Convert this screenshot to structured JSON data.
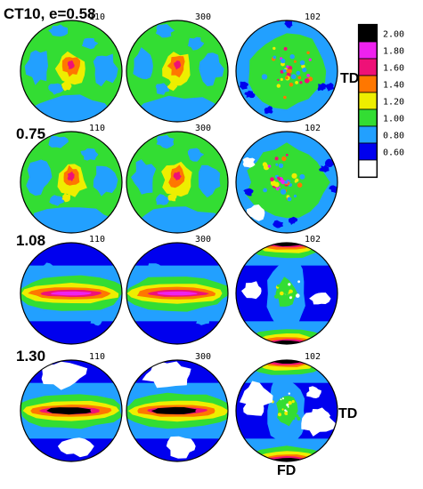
{
  "figure": {
    "rows": [
      {
        "label": "CT10, e=0.58",
        "poles": [
          {
            "hkl": "110",
            "pattern": "central-cluster"
          },
          {
            "hkl": "300",
            "pattern": "central-cluster"
          },
          {
            "hkl": "102",
            "pattern": "central-speckle"
          }
        ]
      },
      {
        "label": "0.75",
        "poles": [
          {
            "hkl": "110",
            "pattern": "central-cluster"
          },
          {
            "hkl": "300",
            "pattern": "central-cluster"
          },
          {
            "hkl": "102",
            "pattern": "central-speckle"
          }
        ]
      },
      {
        "label": "1.08",
        "poles": [
          {
            "hkl": "110",
            "pattern": "equatorial-band"
          },
          {
            "hkl": "300",
            "pattern": "equatorial-band"
          },
          {
            "hkl": "102",
            "pattern": "polar-caps"
          }
        ]
      },
      {
        "label": "1.30",
        "poles": [
          {
            "hkl": "110",
            "pattern": "equatorial-band-strong"
          },
          {
            "hkl": "300",
            "pattern": "equatorial-band-strong"
          },
          {
            "hkl": "102",
            "pattern": "polar-caps-strong"
          }
        ]
      }
    ],
    "axis_labels": {
      "td_top": "TD",
      "td_bottom": "TD",
      "fd": "FD"
    },
    "colorbar": [
      {
        "label": "2.00",
        "color": "#000000"
      },
      {
        "label": "1.80",
        "color": "#ee22ee"
      },
      {
        "label": "1.60",
        "color": "#ee1177"
      },
      {
        "label": "1.40",
        "color": "#ff7700"
      },
      {
        "label": "1.20",
        "color": "#eeee00"
      },
      {
        "label": "1.00",
        "color": "#33dd33"
      },
      {
        "label": "0.80",
        "color": "#22a0ff"
      },
      {
        "label": "0.60",
        "color": "#0000ee"
      },
      {
        "label": "",
        "color": "#ffffff"
      }
    ]
  }
}
